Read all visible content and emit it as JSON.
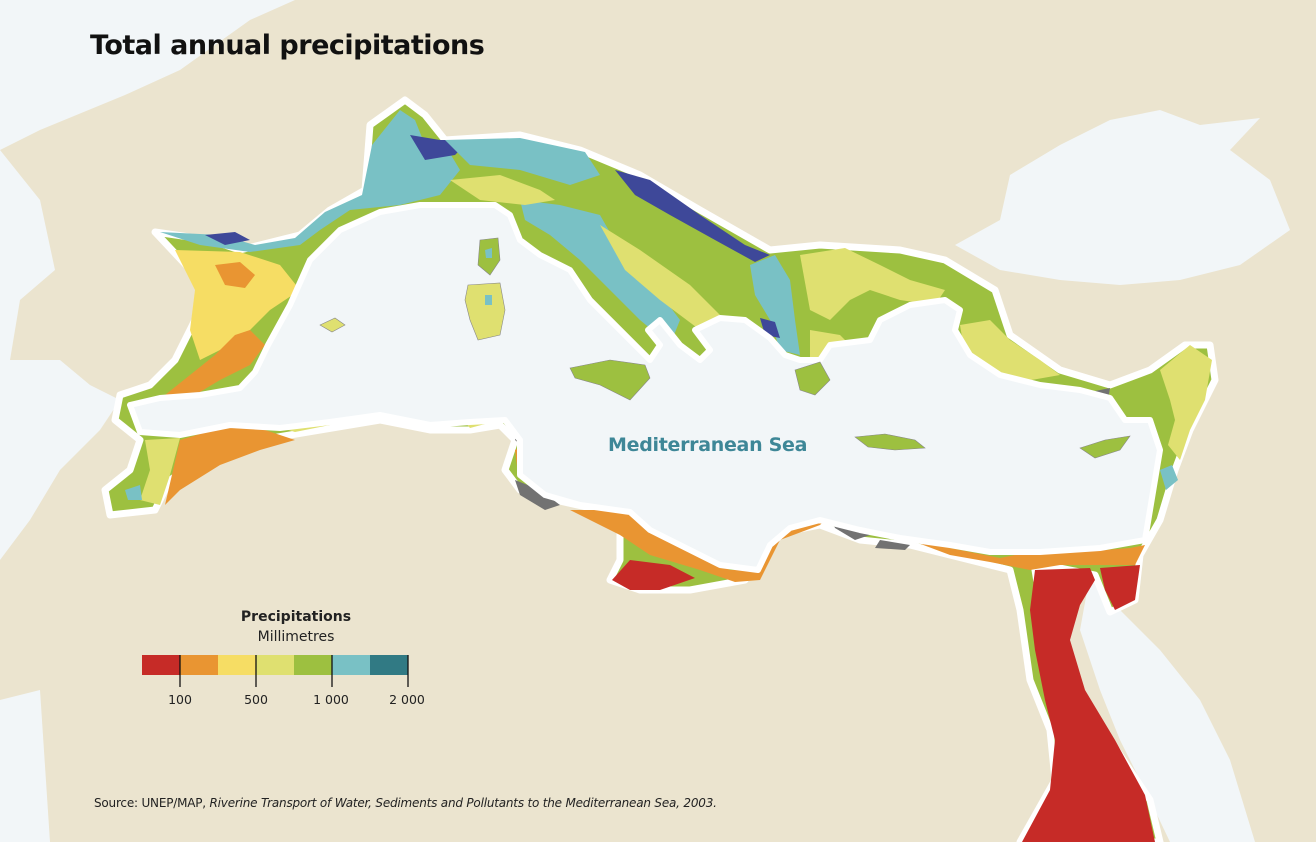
{
  "title": "Total annual precipitations",
  "sea_label": "Mediterranean Sea",
  "legend": {
    "title": "Precipitations",
    "unit": "Millimetres",
    "classes": [
      {
        "color": "#c62b27"
      },
      {
        "color": "#e99532"
      },
      {
        "color": "#f6dd64"
      },
      {
        "color": "#dfe070"
      },
      {
        "color": "#9dc040"
      },
      {
        "color": "#79c1c5"
      },
      {
        "color": "#317a84"
      }
    ],
    "ticks": [
      "100",
      "500",
      "1 000",
      "2 000"
    ]
  },
  "source": {
    "prefix": "Source: UNEP/MAP, ",
    "title": "Riverine Transport of  Water, Sediments and Pollutants to the Mediterranean Sea, 2003."
  },
  "colors": {
    "land": "#ebe4cf",
    "sea": "#f2f6f8",
    "coast_outline": "#ffffff",
    "very_wet": "#3e4899",
    "no_data": "#727272"
  }
}
